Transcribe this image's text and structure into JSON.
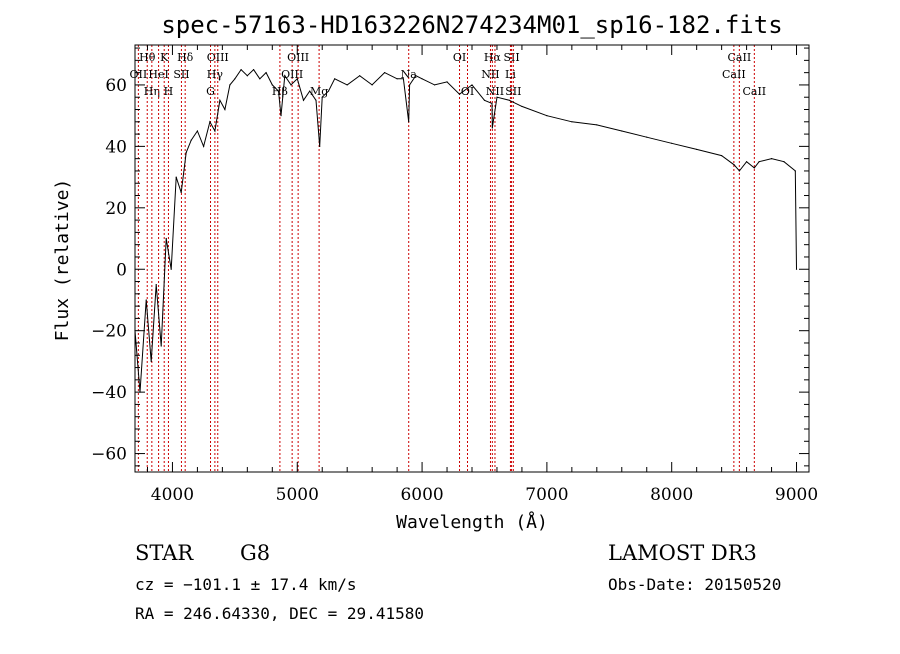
{
  "chart_data": {
    "type": "line",
    "title": "spec-57163-HD163226N274234M01_sp16-182.fits",
    "xlabel": "Wavelength (Å)",
    "ylabel": "Flux (relative)",
    "xlim": [
      3700,
      9100
    ],
    "ylim": [
      -66,
      73
    ],
    "xticks": [
      4000,
      5000,
      6000,
      7000,
      8000,
      9000
    ],
    "yticks": [
      -60,
      -40,
      -20,
      0,
      20,
      40,
      60
    ],
    "series": [
      {
        "name": "spectrum",
        "x": [
          3700,
          3740,
          3790,
          3830,
          3870,
          3910,
          3950,
          3990,
          4030,
          4070,
          4110,
          4150,
          4200,
          4250,
          4300,
          4340,
          4380,
          4420,
          4460,
          4500,
          4550,
          4600,
          4650,
          4700,
          4750,
          4800,
          4850,
          4870,
          4900,
          4950,
          5000,
          5050,
          5100,
          5150,
          5180,
          5200,
          5250,
          5300,
          5400,
          5500,
          5600,
          5700,
          5800,
          5850,
          5893,
          5900,
          5950,
          6000,
          6100,
          6200,
          6300,
          6400,
          6500,
          6560,
          6563,
          6600,
          6700,
          6800,
          7000,
          7200,
          7400,
          7600,
          7800,
          8000,
          8200,
          8400,
          8500,
          8542,
          8600,
          8662,
          8700,
          8800,
          8900,
          8990,
          9000
        ],
        "y": [
          -20,
          -40,
          -10,
          -30,
          -5,
          -25,
          10,
          0,
          30,
          25,
          38,
          42,
          45,
          40,
          48,
          45,
          55,
          52,
          60,
          62,
          65,
          63,
          65,
          62,
          64,
          60,
          58,
          50,
          63,
          60,
          62,
          55,
          58,
          55,
          40,
          56,
          58,
          62,
          60,
          63,
          60,
          64,
          62,
          62,
          48,
          60,
          63,
          62,
          60,
          61,
          57,
          60,
          55,
          54,
          46,
          56,
          55,
          53,
          50,
          48,
          47,
          45,
          43,
          41,
          39,
          37,
          34,
          32,
          35,
          33,
          35,
          36,
          35,
          32,
          0
        ]
      }
    ],
    "spectral_lines": [
      {
        "name": "Hθ",
        "x": 3798,
        "row": 1
      },
      {
        "name": "OII",
        "x": 3727,
        "row": 2
      },
      {
        "name": "Hη",
        "x": 3835,
        "row": 3
      },
      {
        "name": "K",
        "x": 3934,
        "row": 1
      },
      {
        "name": "HeI",
        "x": 3889,
        "row": 2
      },
      {
        "name": "H",
        "x": 3968,
        "row": 3
      },
      {
        "name": "Hδ",
        "x": 4102,
        "row": 1
      },
      {
        "name": "SII",
        "x": 4072,
        "row": 2
      },
      {
        "name": "OIII",
        "x": 4363,
        "row": 1
      },
      {
        "name": "Hγ",
        "x": 4340,
        "row": 2
      },
      {
        "name": "G",
        "x": 4305,
        "row": 3
      },
      {
        "name": "Hβ",
        "x": 4861,
        "row": 3
      },
      {
        "name": "OIII",
        "x": 4959,
        "row": 2
      },
      {
        "name": "OIII",
        "x": 5007,
        "row": 1
      },
      {
        "name": "Mg",
        "x": 5175,
        "row": 3
      },
      {
        "name": "Na",
        "x": 5893,
        "row": 2
      },
      {
        "name": "OI",
        "x": 6300,
        "row": 1
      },
      {
        "name": "OI",
        "x": 6364,
        "row": 3
      },
      {
        "name": "Hα",
        "x": 6563,
        "row": 1
      },
      {
        "name": "NII",
        "x": 6548,
        "row": 2
      },
      {
        "name": "NII",
        "x": 6584,
        "row": 3
      },
      {
        "name": "SII",
        "x": 6717,
        "row": 1
      },
      {
        "name": "Li",
        "x": 6708,
        "row": 2
      },
      {
        "name": "SII",
        "x": 6731,
        "row": 3
      },
      {
        "name": "CaII",
        "x": 8542,
        "row": 1
      },
      {
        "name": "CaII",
        "x": 8498,
        "row": 2
      },
      {
        "name": "CaII",
        "x": 8662,
        "row": 3
      }
    ]
  },
  "info": {
    "object_class": "STAR",
    "subclass": "G8",
    "survey": "LAMOST DR3",
    "redshift_line": "cz = −101.1 ± 17.4 km/s",
    "obs_date": "Obs-Date: 20150520",
    "coords_line": "RA = 246.64330, DEC =  29.41580"
  }
}
